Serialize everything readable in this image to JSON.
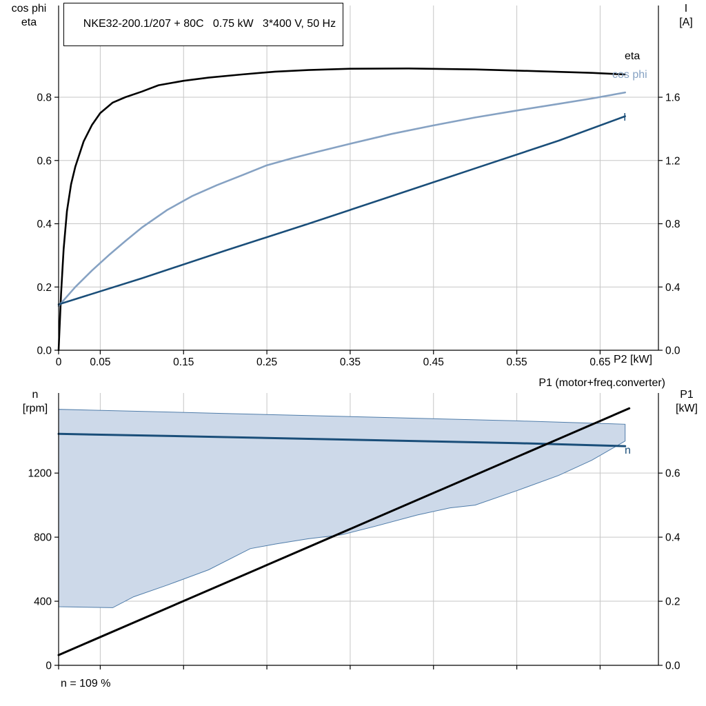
{
  "window": {
    "background": "#ffffff"
  },
  "colors": {
    "grid": "#c6c6c6",
    "axis": "#000000",
    "eta": "#000000",
    "cos_phi": "#86a2c3",
    "current": "#1a4e79",
    "speed": "#1a4e79",
    "p1": "#000000",
    "envelope_fill": "#cdd9e9",
    "envelope_stroke": "#4f7ca9"
  },
  "chart_data": [
    {
      "type": "line",
      "title": "NKE32-200.1/207 + 80C   0.75 kW   3*400 V, 50 Hz",
      "xlim": [
        0,
        0.72
      ],
      "x_axis_label": "P2 [kW]",
      "x_ticks": {
        "values": [
          0,
          0.05,
          0.15,
          0.25,
          0.35,
          0.45,
          0.55,
          0.65
        ],
        "labels": [
          "0",
          "0.05",
          "0.15",
          "0.25",
          "0.35",
          "0.45",
          "0.55",
          "0.65"
        ]
      },
      "left_axis": {
        "lines": [
          "cos phi",
          "eta"
        ],
        "lim": [
          0,
          1.09
        ],
        "ticks": {
          "values": [
            0,
            0.2,
            0.4,
            0.6,
            0.8
          ],
          "labels": [
            "0.0",
            "0.2",
            "0.4",
            "0.6",
            "0.8"
          ]
        }
      },
      "right_axis": {
        "lines": [
          "I",
          "[A]"
        ],
        "lim": [
          0,
          2.18
        ],
        "ticks": {
          "values": [
            0,
            0.4,
            0.8,
            1.2,
            1.6
          ],
          "labels": [
            "0.0",
            "0.4",
            "0.8",
            "1.2",
            "1.6"
          ]
        }
      },
      "h_grid": [
        0.2,
        0.4,
        0.6,
        0.8
      ],
      "series": [
        {
          "name": "eta",
          "label": "eta",
          "axis": "left",
          "color": "#000000",
          "width": 2.6,
          "points": [
            [
              0,
              0
            ],
            [
              0.003,
              0.18
            ],
            [
              0.006,
              0.32
            ],
            [
              0.01,
              0.44
            ],
            [
              0.015,
              0.525
            ],
            [
              0.02,
              0.58
            ],
            [
              0.03,
              0.66
            ],
            [
              0.04,
              0.712
            ],
            [
              0.05,
              0.75
            ],
            [
              0.065,
              0.783
            ],
            [
              0.08,
              0.8
            ],
            [
              0.1,
              0.818
            ],
            [
              0.12,
              0.838
            ],
            [
              0.15,
              0.852
            ],
            [
              0.18,
              0.862
            ],
            [
              0.22,
              0.872
            ],
            [
              0.26,
              0.881
            ],
            [
              0.3,
              0.886
            ],
            [
              0.35,
              0.89
            ],
            [
              0.42,
              0.891
            ],
            [
              0.5,
              0.888
            ],
            [
              0.58,
              0.882
            ],
            [
              0.64,
              0.877
            ],
            [
              0.68,
              0.872
            ]
          ]
        },
        {
          "name": "cos-phi",
          "label": "cos phi",
          "axis": "left",
          "color": "#86a2c3",
          "width": 2.6,
          "points": [
            [
              0,
              0.14
            ],
            [
              0.02,
              0.2
            ],
            [
              0.04,
              0.252
            ],
            [
              0.06,
              0.3
            ],
            [
              0.08,
              0.345
            ],
            [
              0.1,
              0.388
            ],
            [
              0.13,
              0.443
            ],
            [
              0.16,
              0.487
            ],
            [
              0.19,
              0.522
            ],
            [
              0.22,
              0.553
            ],
            [
              0.25,
              0.585
            ],
            [
              0.28,
              0.607
            ],
            [
              0.31,
              0.627
            ],
            [
              0.35,
              0.653
            ],
            [
              0.4,
              0.684
            ],
            [
              0.45,
              0.711
            ],
            [
              0.5,
              0.736
            ],
            [
              0.55,
              0.758
            ],
            [
              0.6,
              0.779
            ],
            [
              0.64,
              0.796
            ],
            [
              0.68,
              0.815
            ]
          ]
        },
        {
          "name": "current",
          "label": "I",
          "axis": "right",
          "color": "#1a4e79",
          "width": 2.6,
          "points": [
            [
              0,
              0.29
            ],
            [
              0.1,
              0.455
            ],
            [
              0.2,
              0.63
            ],
            [
              0.3,
              0.8
            ],
            [
              0.4,
              0.975
            ],
            [
              0.5,
              1.15
            ],
            [
              0.6,
              1.325
            ],
            [
              0.68,
              1.48
            ]
          ]
        }
      ]
    },
    {
      "type": "line",
      "xlim": [
        0,
        0.72
      ],
      "x_ticks": {
        "values": [
          0,
          0.05,
          0.15,
          0.25,
          0.35,
          0.45,
          0.55,
          0.65
        ],
        "labels": [
          "",
          "",
          "",
          "",
          "",
          "",
          "",
          ""
        ]
      },
      "left_axis": {
        "lines": [
          "n",
          "[rpm]"
        ],
        "lim": [
          0,
          1700
        ],
        "ticks": {
          "values": [
            0,
            400,
            800,
            1200
          ],
          "labels": [
            "0",
            "400",
            "800",
            "1200"
          ]
        }
      },
      "right_axis": {
        "lines": [
          "P1",
          "[kW]"
        ],
        "lim": [
          0,
          0.85
        ],
        "ticks": {
          "values": [
            0,
            0.2,
            0.4,
            0.6
          ],
          "labels": [
            "0.0",
            "0.2",
            "0.4",
            "0.6"
          ]
        }
      },
      "h_grid": [
        400,
        800,
        1200
      ],
      "right_axis_title": "P1 (motor+freq.converter)",
      "annotation": "n = 109 %",
      "area": {
        "name": "speed-range-envelope",
        "axis": "left",
        "fill": "#cdd9e9",
        "stroke": "#4f7ca9",
        "points": [
          [
            0,
            366
          ],
          [
            0.065,
            360
          ],
          [
            0.09,
            428
          ],
          [
            0.13,
            500
          ],
          [
            0.18,
            596
          ],
          [
            0.23,
            728
          ],
          [
            0.26,
            757
          ],
          [
            0.3,
            790
          ],
          [
            0.34,
            815
          ],
          [
            0.38,
            868
          ],
          [
            0.43,
            938
          ],
          [
            0.47,
            983
          ],
          [
            0.5,
            1000
          ],
          [
            0.55,
            1090
          ],
          [
            0.6,
            1185
          ],
          [
            0.64,
            1280
          ],
          [
            0.68,
            1400
          ],
          [
            0.68,
            1505
          ],
          [
            0.55,
            1526
          ],
          [
            0.4,
            1546
          ],
          [
            0.2,
            1572
          ],
          [
            0,
            1598
          ]
        ]
      },
      "series": [
        {
          "name": "speed",
          "label": "n",
          "axis": "left",
          "color": "#1a4e79",
          "width": 3,
          "points": [
            [
              0,
              1445
            ],
            [
              0.15,
              1430
            ],
            [
              0.3,
              1414
            ],
            [
              0.45,
              1398
            ],
            [
              0.55,
              1387
            ],
            [
              0.68,
              1368
            ]
          ]
        },
        {
          "name": "p1",
          "label": "P1",
          "axis": "right",
          "color": "#000000",
          "width": 3,
          "points": [
            [
              0,
              0.032
            ],
            [
              0.685,
              0.802
            ]
          ]
        }
      ]
    }
  ]
}
